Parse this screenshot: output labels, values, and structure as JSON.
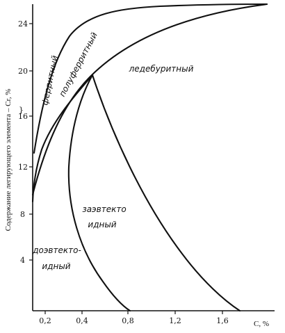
{
  "diagram": {
    "y_axis_title": "Содержание легирующего элемента – Cr, %",
    "x_axis_title": "C, %",
    "y_ticks": [
      "4",
      "8",
      "12",
      "16",
      "20",
      "24"
    ],
    "x_ticks": [
      "0,2",
      "0,4",
      "0,8",
      "1,2",
      "1,6"
    ],
    "regions": {
      "ferritic": "ферритный",
      "semiferritic": "полуферритный",
      "ledeburitic": "ледебуритный",
      "hypereutectoid_line1": "заэвтекто",
      "hypereutectoid_line2": "идный",
      "hypoeutectoid_line1": "доэвтекто-",
      "hypoeutectoid_line2": "идный"
    },
    "axis_break_symbol": "}"
  }
}
